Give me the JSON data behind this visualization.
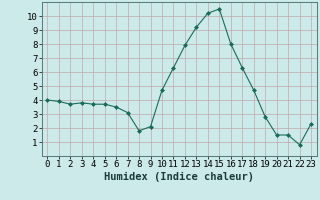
{
  "x": [
    0,
    1,
    2,
    3,
    4,
    5,
    6,
    7,
    8,
    9,
    10,
    11,
    12,
    13,
    14,
    15,
    16,
    17,
    18,
    19,
    20,
    21,
    22,
    23
  ],
  "y": [
    4.0,
    3.9,
    3.7,
    3.8,
    3.7,
    3.7,
    3.5,
    3.1,
    1.8,
    2.1,
    4.7,
    6.3,
    7.9,
    9.2,
    10.2,
    10.5,
    8.0,
    6.3,
    4.7,
    2.8,
    1.5,
    1.5,
    0.8,
    2.3
  ],
  "line_color": "#1a6b5a",
  "marker": "D",
  "marker_size": 2.0,
  "bg_color": "#cceaea",
  "grid_color": "#c0a8a8",
  "xlabel": "Humidex (Indice chaleur)",
  "ylim": [
    0,
    11
  ],
  "xlim": [
    -0.5,
    23.5
  ],
  "yticks": [
    1,
    2,
    3,
    4,
    5,
    6,
    7,
    8,
    9,
    10
  ],
  "xticks": [
    0,
    1,
    2,
    3,
    4,
    5,
    6,
    7,
    8,
    9,
    10,
    11,
    12,
    13,
    14,
    15,
    16,
    17,
    18,
    19,
    20,
    21,
    22,
    23
  ],
  "xlabel_fontsize": 7.5,
  "tick_fontsize": 6.5
}
